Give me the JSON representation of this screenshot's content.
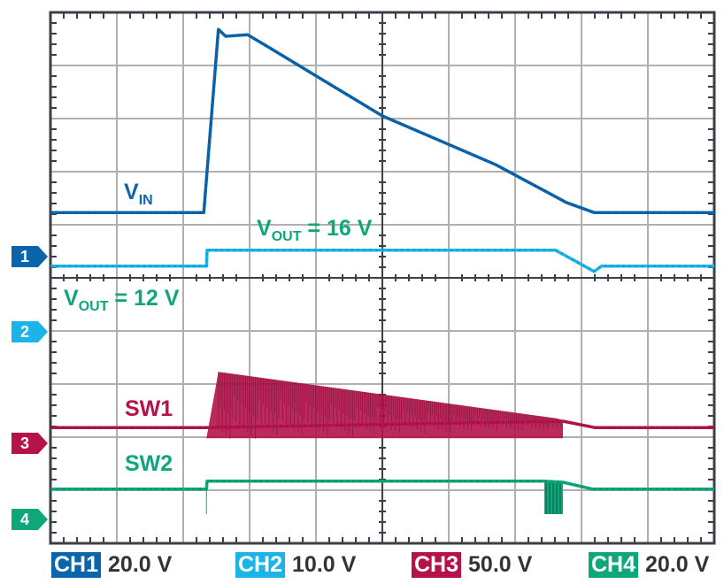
{
  "chart_data": {
    "type": "line",
    "title": "",
    "xlabel": "",
    "ylabel": "",
    "grid": true,
    "x_divisions": 10,
    "y_divisions": 10,
    "xlim": [
      0,
      10
    ],
    "ylim": [
      0,
      10
    ],
    "series": [
      {
        "id": "ch1",
        "name": "VIN",
        "color": "#0b65ad",
        "points": [
          [
            0,
            6.23
          ],
          [
            2.31,
            6.23
          ],
          [
            2.53,
            9.68
          ],
          [
            2.64,
            9.55
          ],
          [
            2.97,
            9.58
          ],
          [
            3.24,
            9.38
          ],
          [
            5.0,
            8.05
          ],
          [
            6.71,
            7.13
          ],
          [
            7.77,
            6.42
          ],
          [
            8.19,
            6.23
          ],
          [
            10,
            6.23
          ]
        ]
      },
      {
        "id": "ch2",
        "name": "VOUT",
        "color": "#1ab4e8",
        "points": [
          [
            0,
            5.22
          ],
          [
            2.35,
            5.22
          ],
          [
            2.36,
            5.52
          ],
          [
            7.61,
            5.52
          ],
          [
            8.19,
            5.12
          ],
          [
            8.3,
            5.22
          ],
          [
            10,
            5.22
          ]
        ]
      },
      {
        "id": "ch3",
        "name": "SW1",
        "color": "#b5124a",
        "baseline": 2.18,
        "switching": {
          "start": 2.35,
          "end": 7.72,
          "low": 1.98,
          "peak_start": [
            2.53,
            3.23
          ],
          "peak_end": [
            7.64,
            2.35
          ]
        },
        "points": [
          [
            0,
            2.18
          ],
          [
            2.35,
            2.18
          ],
          [
            7.72,
            2.3
          ],
          [
            8.2,
            2.18
          ],
          [
            10,
            2.18
          ]
        ]
      },
      {
        "id": "ch4",
        "name": "SW2",
        "color": "#0ea77a",
        "points": [
          [
            0,
            1.02
          ],
          [
            2.35,
            1.02
          ],
          [
            2.36,
            1.17
          ],
          [
            7.44,
            1.17
          ],
          [
            7.72,
            1.15
          ],
          [
            8.17,
            1.02
          ],
          [
            10,
            1.02
          ]
        ],
        "pulses": {
          "start": 7.44,
          "end": 7.72,
          "low": 0.55
        },
        "spike": [
          2.35,
          0.55
        ]
      }
    ]
  },
  "annotations": {
    "vin": {
      "main": "V",
      "sub": "IN"
    },
    "vout16": {
      "main": "V",
      "sub": "OUT",
      "rest": " = 16 V"
    },
    "vout12": {
      "main": "V",
      "sub": "OUT",
      "rest": " = 12 V"
    },
    "sw1": "SW1",
    "sw2": "SW2"
  },
  "markers": [
    {
      "label": "1",
      "color": "#0b65ad"
    },
    {
      "label": "2",
      "color": "#1ab4e8"
    },
    {
      "label": "3",
      "color": "#b5124a"
    },
    {
      "label": "4",
      "color": "#0ea77a"
    }
  ],
  "legend": [
    {
      "channel": "CH1",
      "scale": "20.0 V",
      "color": "#0b65ad"
    },
    {
      "channel": "CH2",
      "scale": "10.0 V",
      "color": "#1ab4e8"
    },
    {
      "channel": "CH3",
      "scale": "50.0 V",
      "color": "#b5124a"
    },
    {
      "channel": "CH4",
      "scale": "20.0 V",
      "color": "#0ea77a"
    }
  ]
}
